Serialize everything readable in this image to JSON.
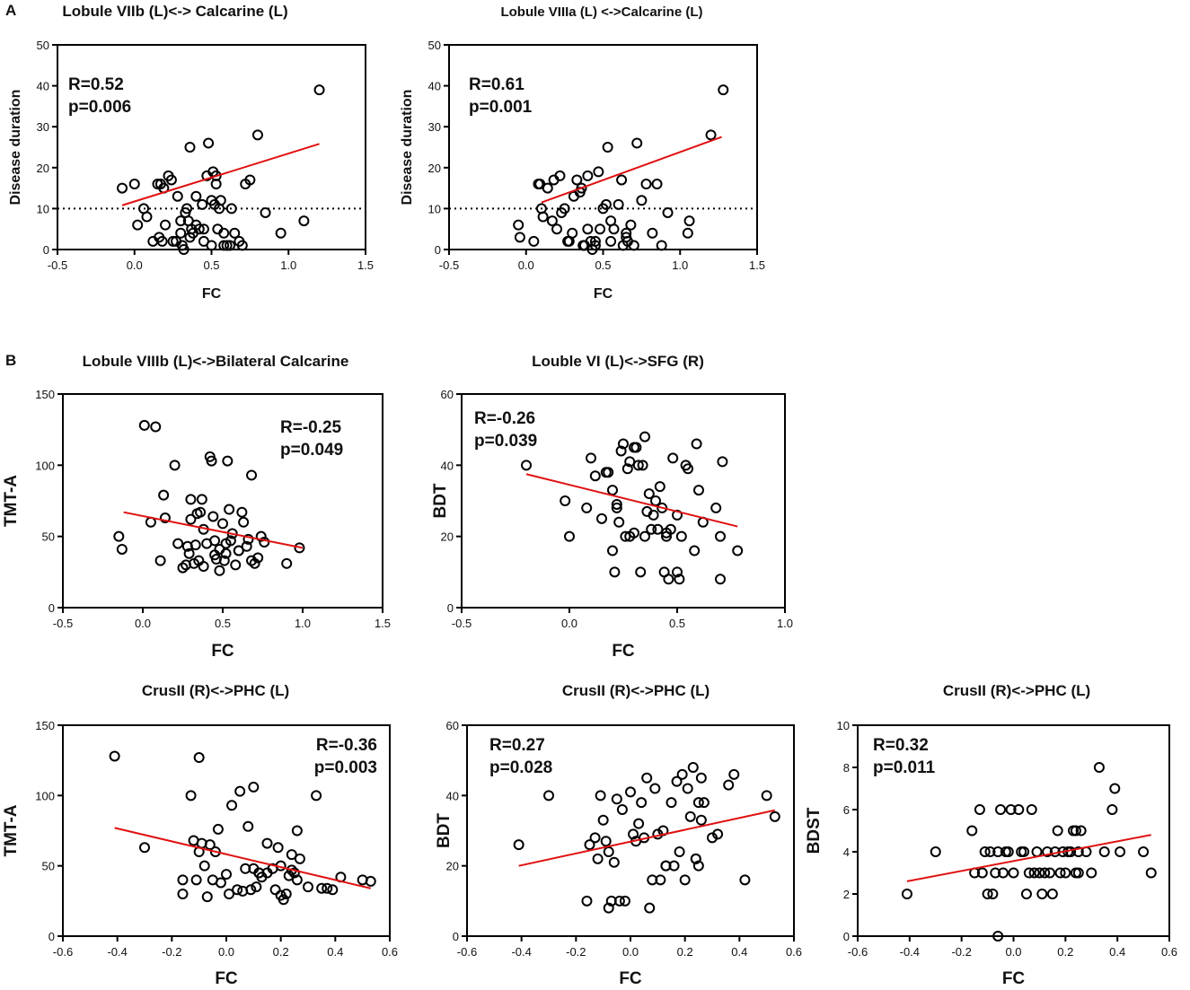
{
  "figure": {
    "section_a_label": "A",
    "section_b_label": "B"
  },
  "colors": {
    "fit_line": "#e01010",
    "axis": "#000000",
    "point_stroke": "#000000",
    "reference_line": "#000000"
  },
  "chart_data": [
    {
      "type": "scatter",
      "title": "Lobule VIIb (L)<-> Calcarine (L)",
      "xlabel": "FC",
      "ylabel": "Disease duration",
      "xlim": [
        -0.5,
        1.5
      ],
      "ylim": [
        0,
        50
      ],
      "xticks": [
        -0.5,
        0.0,
        0.5,
        1.0,
        1.5
      ],
      "yticks": [
        0,
        10,
        20,
        30,
        40,
        50
      ],
      "xtick_labels": [
        "-0.5",
        "0.0",
        "0.5",
        "1.0",
        "1.5"
      ],
      "ytick_labels": [
        "0",
        "10",
        "20",
        "30",
        "40",
        "50"
      ],
      "reference_line_y": 10,
      "fit_line": {
        "x": [
          -0.08,
          1.2
        ],
        "y": [
          10.8,
          25.8
        ]
      },
      "annotations": [
        "R=0.52",
        "p=0.006"
      ],
      "points": {
        "x": [
          -0.08,
          0.0,
          0.02,
          0.06,
          0.08,
          0.12,
          0.15,
          0.17,
          0.18,
          0.2,
          0.16,
          0.19,
          0.22,
          0.24,
          0.27,
          0.28,
          0.3,
          0.31,
          0.32,
          0.33,
          0.34,
          0.35,
          0.36,
          0.37,
          0.38,
          0.4,
          0.42,
          0.44,
          0.45,
          0.47,
          0.48,
          0.5,
          0.5,
          0.51,
          0.52,
          0.53,
          0.54,
          0.55,
          0.56,
          0.58,
          0.6,
          0.62,
          0.65,
          0.68,
          0.7,
          0.72,
          0.75,
          0.8,
          0.85,
          0.95,
          1.1,
          1.2,
          0.25,
          0.3,
          0.45,
          0.53,
          0.4,
          0.36,
          0.58,
          0.63
        ],
        "y": [
          15,
          16,
          6,
          10,
          8,
          2,
          16,
          16,
          2,
          6,
          3,
          15,
          18,
          17,
          2,
          13,
          4,
          1,
          0,
          9,
          10,
          7,
          25,
          5,
          4,
          13,
          5,
          11,
          2,
          18,
          26,
          1,
          12,
          19,
          11,
          16,
          5,
          10,
          12,
          4,
          1,
          1,
          4,
          2,
          1,
          16,
          17,
          28,
          9,
          4,
          7,
          39,
          2,
          7,
          5,
          18,
          6,
          3,
          1,
          10
        ]
      }
    },
    {
      "type": "scatter",
      "title": "Lobule VIIIa (L) <->Calcarine (L)",
      "xlabel": "FC",
      "ylabel": "Disease duration",
      "xlim": [
        -0.5,
        1.5
      ],
      "ylim": [
        0,
        50
      ],
      "xticks": [
        -0.5,
        0.0,
        0.5,
        1.0,
        1.5
      ],
      "yticks": [
        0,
        10,
        20,
        30,
        40,
        50
      ],
      "xtick_labels": [
        "-0.5",
        "0.0",
        "0.5",
        "1.0",
        "1.5"
      ],
      "ytick_labels": [
        "0",
        "10",
        "20",
        "30",
        "40",
        "50"
      ],
      "reference_line_y": 10,
      "fit_line": {
        "x": [
          0.1,
          1.27
        ],
        "y": [
          11.5,
          27.5
        ]
      },
      "annotations": [
        "R=0.61",
        "p=0.001"
      ],
      "points": {
        "x": [
          -0.05,
          -0.04,
          0.05,
          0.08,
          0.09,
          0.1,
          0.11,
          0.14,
          0.17,
          0.18,
          0.2,
          0.22,
          0.23,
          0.25,
          0.27,
          0.3,
          0.31,
          0.33,
          0.35,
          0.36,
          0.37,
          0.38,
          0.4,
          0.42,
          0.43,
          0.45,
          0.45,
          0.47,
          0.48,
          0.5,
          0.52,
          0.53,
          0.55,
          0.57,
          0.6,
          0.62,
          0.63,
          0.65,
          0.66,
          0.68,
          0.7,
          0.72,
          0.75,
          0.78,
          0.82,
          0.85,
          0.92,
          1.05,
          1.06,
          1.2,
          1.28,
          0.28,
          0.4,
          0.55,
          0.65,
          0.88
        ],
        "y": [
          6,
          3,
          2,
          16,
          16,
          10,
          8,
          15,
          7,
          17,
          5,
          18,
          9,
          10,
          2,
          4,
          13,
          17,
          14,
          15,
          1,
          1,
          18,
          2,
          0,
          1,
          2,
          19,
          5,
          10,
          11,
          25,
          7,
          5,
          11,
          17,
          1,
          4,
          2,
          6,
          1,
          26,
          12,
          16,
          4,
          16,
          9,
          4,
          7,
          28,
          39,
          2,
          5,
          2,
          3,
          1
        ]
      }
    },
    {
      "type": "scatter",
      "title": "Lobule VIIIb (L)<->Bilateral Calcarine",
      "xlabel": "FC",
      "ylabel": "TMT-A",
      "xlim": [
        -0.5,
        1.5
      ],
      "ylim": [
        0,
        150
      ],
      "xticks": [
        -0.5,
        0.0,
        0.5,
        1.0,
        1.5
      ],
      "yticks": [
        0,
        50,
        100,
        150
      ],
      "xtick_labels": [
        "-0.5",
        "0.0",
        "0.5",
        "1.0",
        "1.5"
      ],
      "ytick_labels": [
        "0",
        "50",
        "100",
        "150"
      ],
      "fit_line": {
        "x": [
          -0.12,
          1.0
        ],
        "y": [
          67,
          42
        ]
      },
      "annotations": [
        "R=-0.25",
        "p=0.049"
      ],
      "points": {
        "x": [
          -0.15,
          -0.13,
          0.01,
          0.05,
          0.08,
          0.11,
          0.13,
          0.14,
          0.2,
          0.22,
          0.25,
          0.27,
          0.29,
          0.3,
          0.3,
          0.32,
          0.33,
          0.34,
          0.35,
          0.36,
          0.37,
          0.38,
          0.4,
          0.42,
          0.43,
          0.44,
          0.45,
          0.46,
          0.48,
          0.48,
          0.5,
          0.51,
          0.52,
          0.53,
          0.54,
          0.55,
          0.56,
          0.58,
          0.6,
          0.62,
          0.63,
          0.65,
          0.66,
          0.68,
          0.7,
          0.72,
          0.74,
          0.76,
          0.9,
          0.98,
          0.28,
          0.38,
          0.52,
          0.45,
          0.6,
          0.68
        ],
        "y": [
          50,
          41,
          128,
          60,
          127,
          33,
          79,
          63,
          100,
          45,
          28,
          30,
          38,
          62,
          76,
          31,
          44,
          66,
          33,
          67,
          76,
          29,
          45,
          106,
          103,
          64,
          37,
          34,
          41,
          26,
          59,
          33,
          45,
          103,
          69,
          47,
          52,
          30,
          40,
          67,
          60,
          43,
          48,
          93,
          31,
          35,
          50,
          46,
          31,
          42,
          43,
          55,
          38,
          47,
          40,
          33
        ]
      }
    },
    {
      "type": "scatter",
      "title": "Louble VI (L)<->SFG (R)",
      "xlabel": "FC",
      "ylabel": "BDT",
      "xlim": [
        -0.5,
        1.0
      ],
      "ylim": [
        0,
        60
      ],
      "xticks": [
        -0.5,
        0.0,
        0.5,
        1.0
      ],
      "yticks": [
        0,
        20,
        40,
        60
      ],
      "xtick_labels": [
        "-0.5",
        "0.0",
        "0.5",
        "1.0"
      ],
      "ytick_labels": [
        "0",
        "20",
        "40",
        "60"
      ],
      "fit_line": {
        "x": [
          -0.2,
          0.78
        ],
        "y": [
          37.5,
          22.8
        ]
      },
      "annotations": [
        "R=-0.26",
        "p=0.039"
      ],
      "points": {
        "x": [
          -0.2,
          -0.02,
          0.0,
          0.08,
          0.1,
          0.12,
          0.15,
          0.17,
          0.18,
          0.2,
          0.2,
          0.21,
          0.22,
          0.23,
          0.24,
          0.25,
          0.26,
          0.27,
          0.28,
          0.3,
          0.3,
          0.31,
          0.32,
          0.33,
          0.34,
          0.35,
          0.35,
          0.36,
          0.37,
          0.38,
          0.39,
          0.4,
          0.41,
          0.42,
          0.43,
          0.44,
          0.45,
          0.46,
          0.47,
          0.48,
          0.5,
          0.5,
          0.51,
          0.52,
          0.54,
          0.55,
          0.58,
          0.59,
          0.6,
          0.62,
          0.68,
          0.7,
          0.7,
          0.71,
          0.78,
          0.28,
          0.45,
          0.22
        ],
        "y": [
          40,
          30,
          20,
          28,
          42,
          37,
          25,
          38,
          38,
          33,
          16,
          10,
          28,
          24,
          44,
          46,
          20,
          39,
          41,
          45,
          21,
          45,
          40,
          10,
          40,
          48,
          20,
          27,
          32,
          22,
          26,
          30,
          22,
          34,
          28,
          10,
          20,
          8,
          22,
          42,
          10,
          26,
          8,
          20,
          40,
          39,
          16,
          46,
          33,
          24,
          28,
          20,
          8,
          41,
          16,
          20,
          21,
          29
        ]
      }
    },
    {
      "type": "scatter",
      "title": "CrusII (R)<->PHC (L)",
      "xlabel": "FC",
      "ylabel": "TMT-A",
      "xlim": [
        -0.6,
        0.6
      ],
      "ylim": [
        0,
        150
      ],
      "xticks": [
        -0.6,
        -0.4,
        -0.2,
        0.0,
        0.2,
        0.4,
        0.6
      ],
      "yticks": [
        0,
        50,
        100,
        150
      ],
      "xtick_labels": [
        "-0.6",
        "-0.4",
        "-0.2",
        "0.0",
        "0.2",
        "0.4",
        "0.6"
      ],
      "ytick_labels": [
        "0",
        "50",
        "100",
        "150"
      ],
      "fit_line": {
        "x": [
          -0.41,
          0.53
        ],
        "y": [
          77,
          34
        ]
      },
      "annotations": [
        "R=-0.36",
        "p=0.003"
      ],
      "points": {
        "x": [
          -0.41,
          -0.3,
          -0.16,
          -0.16,
          -0.13,
          -0.12,
          -0.11,
          -0.1,
          -0.1,
          -0.09,
          -0.08,
          -0.07,
          -0.06,
          -0.05,
          -0.04,
          -0.03,
          -0.02,
          0.0,
          0.01,
          0.02,
          0.04,
          0.05,
          0.06,
          0.07,
          0.08,
          0.09,
          0.1,
          0.1,
          0.11,
          0.12,
          0.13,
          0.15,
          0.15,
          0.17,
          0.18,
          0.19,
          0.2,
          0.21,
          0.22,
          0.23,
          0.24,
          0.24,
          0.25,
          0.26,
          0.26,
          0.27,
          0.3,
          0.33,
          0.35,
          0.37,
          0.39,
          0.42,
          0.5,
          0.53,
          0.12,
          0.2
        ],
        "y": [
          128,
          63,
          40,
          30,
          100,
          68,
          40,
          127,
          60,
          66,
          50,
          28,
          65,
          40,
          60,
          76,
          38,
          44,
          30,
          93,
          33,
          103,
          32,
          48,
          78,
          33,
          48,
          106,
          35,
          45,
          42,
          66,
          45,
          48,
          33,
          63,
          29,
          26,
          30,
          43,
          58,
          47,
          45,
          75,
          40,
          55,
          35,
          100,
          34,
          34,
          33,
          42,
          40,
          39,
          45,
          50
        ]
      }
    },
    {
      "type": "scatter",
      "title": "CrusII (R)<->PHC (L)",
      "xlabel": "FC",
      "ylabel": "BDT",
      "xlim": [
        -0.6,
        0.6
      ],
      "ylim": [
        0,
        60
      ],
      "xticks": [
        -0.6,
        -0.4,
        -0.2,
        0.0,
        0.2,
        0.4,
        0.6
      ],
      "yticks": [
        0,
        20,
        40,
        60
      ],
      "xtick_labels": [
        "-0.6",
        "-0.4",
        "-0.2",
        "0.0",
        "0.2",
        "0.4",
        "0.6"
      ],
      "ytick_labels": [
        "0",
        "20",
        "40",
        "60"
      ],
      "fit_line": {
        "x": [
          -0.41,
          0.53
        ],
        "y": [
          20,
          35.8
        ]
      },
      "annotations": [
        "R=0.27",
        "p=0.028"
      ],
      "points": {
        "x": [
          -0.41,
          -0.3,
          -0.16,
          -0.15,
          -0.13,
          -0.12,
          -0.11,
          -0.1,
          -0.09,
          -0.08,
          -0.08,
          -0.07,
          -0.06,
          -0.05,
          -0.04,
          -0.03,
          -0.02,
          0.0,
          0.01,
          0.02,
          0.03,
          0.04,
          0.05,
          0.06,
          0.07,
          0.08,
          0.09,
          0.1,
          0.11,
          0.12,
          0.13,
          0.15,
          0.16,
          0.17,
          0.18,
          0.19,
          0.2,
          0.21,
          0.22,
          0.23,
          0.24,
          0.25,
          0.25,
          0.26,
          0.26,
          0.27,
          0.3,
          0.32,
          0.36,
          0.38,
          0.42,
          0.5,
          0.53,
          0.13,
          0.24
        ],
        "y": [
          26,
          40,
          10,
          26,
          28,
          22,
          40,
          33,
          27,
          8,
          24,
          10,
          21,
          39,
          10,
          36,
          10,
          41,
          29,
          27,
          32,
          38,
          28,
          45,
          8,
          16,
          42,
          29,
          16,
          30,
          20,
          38,
          20,
          44,
          24,
          46,
          16,
          42,
          34,
          48,
          22,
          38,
          20,
          45,
          33,
          38,
          28,
          29,
          43,
          46,
          16,
          40,
          34,
          20,
          22
        ]
      }
    },
    {
      "type": "scatter",
      "title": "CrusII (R)<->PHC (L)",
      "xlabel": "FC",
      "ylabel": "BDST",
      "xlim": [
        -0.6,
        0.6
      ],
      "ylim": [
        0,
        10
      ],
      "xticks": [
        -0.6,
        -0.4,
        -0.2,
        0.0,
        0.2,
        0.4,
        0.6
      ],
      "yticks": [
        0,
        2,
        4,
        6,
        8,
        10
      ],
      "xtick_labels": [
        "-0.6",
        "-0.4",
        "-0.2",
        "0.0",
        "0.2",
        "0.4",
        "0.6"
      ],
      "ytick_labels": [
        "0",
        "2",
        "4",
        "6",
        "8",
        "10"
      ],
      "fit_line": {
        "x": [
          -0.41,
          0.53
        ],
        "y": [
          2.6,
          4.8
        ]
      },
      "annotations": [
        "R=0.32",
        "p=0.011"
      ],
      "points": {
        "x": [
          -0.41,
          -0.3,
          -0.16,
          -0.15,
          -0.13,
          -0.12,
          -0.11,
          -0.1,
          -0.09,
          -0.08,
          -0.07,
          -0.06,
          -0.06,
          -0.05,
          -0.04,
          -0.03,
          -0.02,
          -0.01,
          0.0,
          0.02,
          0.03,
          0.04,
          0.05,
          0.06,
          0.07,
          0.08,
          0.09,
          0.1,
          0.11,
          0.12,
          0.13,
          0.14,
          0.15,
          0.16,
          0.17,
          0.18,
          0.19,
          0.2,
          0.21,
          0.22,
          0.23,
          0.24,
          0.24,
          0.25,
          0.25,
          0.26,
          0.33,
          0.35,
          0.38,
          0.39,
          0.41,
          0.5,
          0.53,
          0.3,
          0.28
        ],
        "y": [
          2,
          4,
          5,
          3,
          6,
          3,
          4,
          2,
          4,
          2,
          3,
          0,
          4,
          6,
          3,
          4,
          4,
          6,
          3,
          6,
          4,
          4,
          2,
          3,
          6,
          3,
          4,
          3,
          2,
          3,
          4,
          3,
          2,
          4,
          5,
          3,
          4,
          3,
          4,
          4,
          5,
          3,
          5,
          3,
          4,
          5,
          8,
          4,
          6,
          7,
          4,
          4,
          3,
          3,
          4
        ]
      }
    }
  ]
}
